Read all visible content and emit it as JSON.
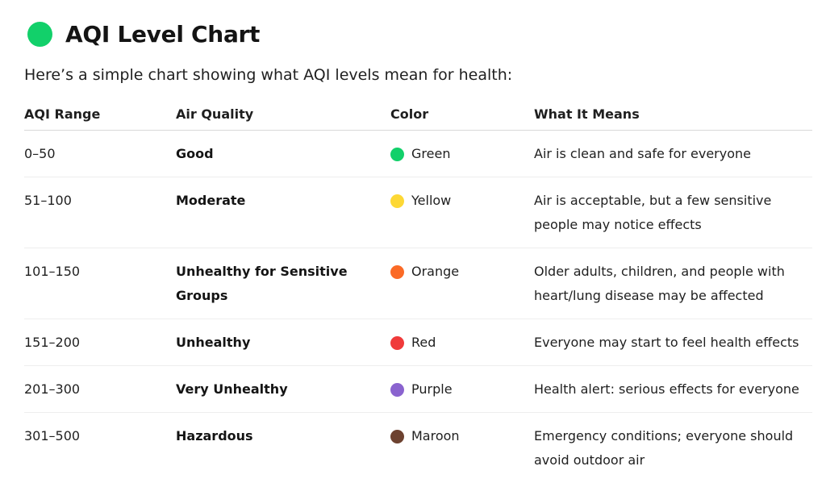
{
  "heading": {
    "title": "AQI Level Chart",
    "dot_color": "#12d06a",
    "dot_icon": "green-circle-icon"
  },
  "intro": "Here’s a simple chart showing what AQI levels mean for health:",
  "table": {
    "headers": [
      "AQI Range",
      "Air Quality",
      "Color",
      "What It Means"
    ],
    "rows": [
      {
        "range": "0–50",
        "quality": "Good",
        "color_name": "Green",
        "swatch": "#12d06a",
        "meaning": "Air is clean and safe for everyone"
      },
      {
        "range": "51–100",
        "quality": "Moderate",
        "color_name": "Yellow",
        "swatch": "#fdd835",
        "meaning": "Air is acceptable, but a few sensitive people may notice effects"
      },
      {
        "range": "101–150",
        "quality": "Unhealthy for Sensitive Groups",
        "color_name": "Orange",
        "swatch": "#fb6a26",
        "meaning": "Older adults, children, and people with heart/lung disease may be affected"
      },
      {
        "range": "151–200",
        "quality": "Unhealthy",
        "color_name": "Red",
        "swatch": "#f03a3a",
        "meaning": "Everyone may start to feel health effects"
      },
      {
        "range": "201–300",
        "quality": "Very Unhealthy",
        "color_name": "Purple",
        "swatch": "#8a63cf",
        "meaning": "Health alert: serious effects for everyone"
      },
      {
        "range": "301–500",
        "quality": "Hazardous",
        "color_name": "Maroon",
        "swatch": "#6d4230",
        "meaning": "Emergency conditions; everyone should avoid outdoor air"
      }
    ]
  }
}
